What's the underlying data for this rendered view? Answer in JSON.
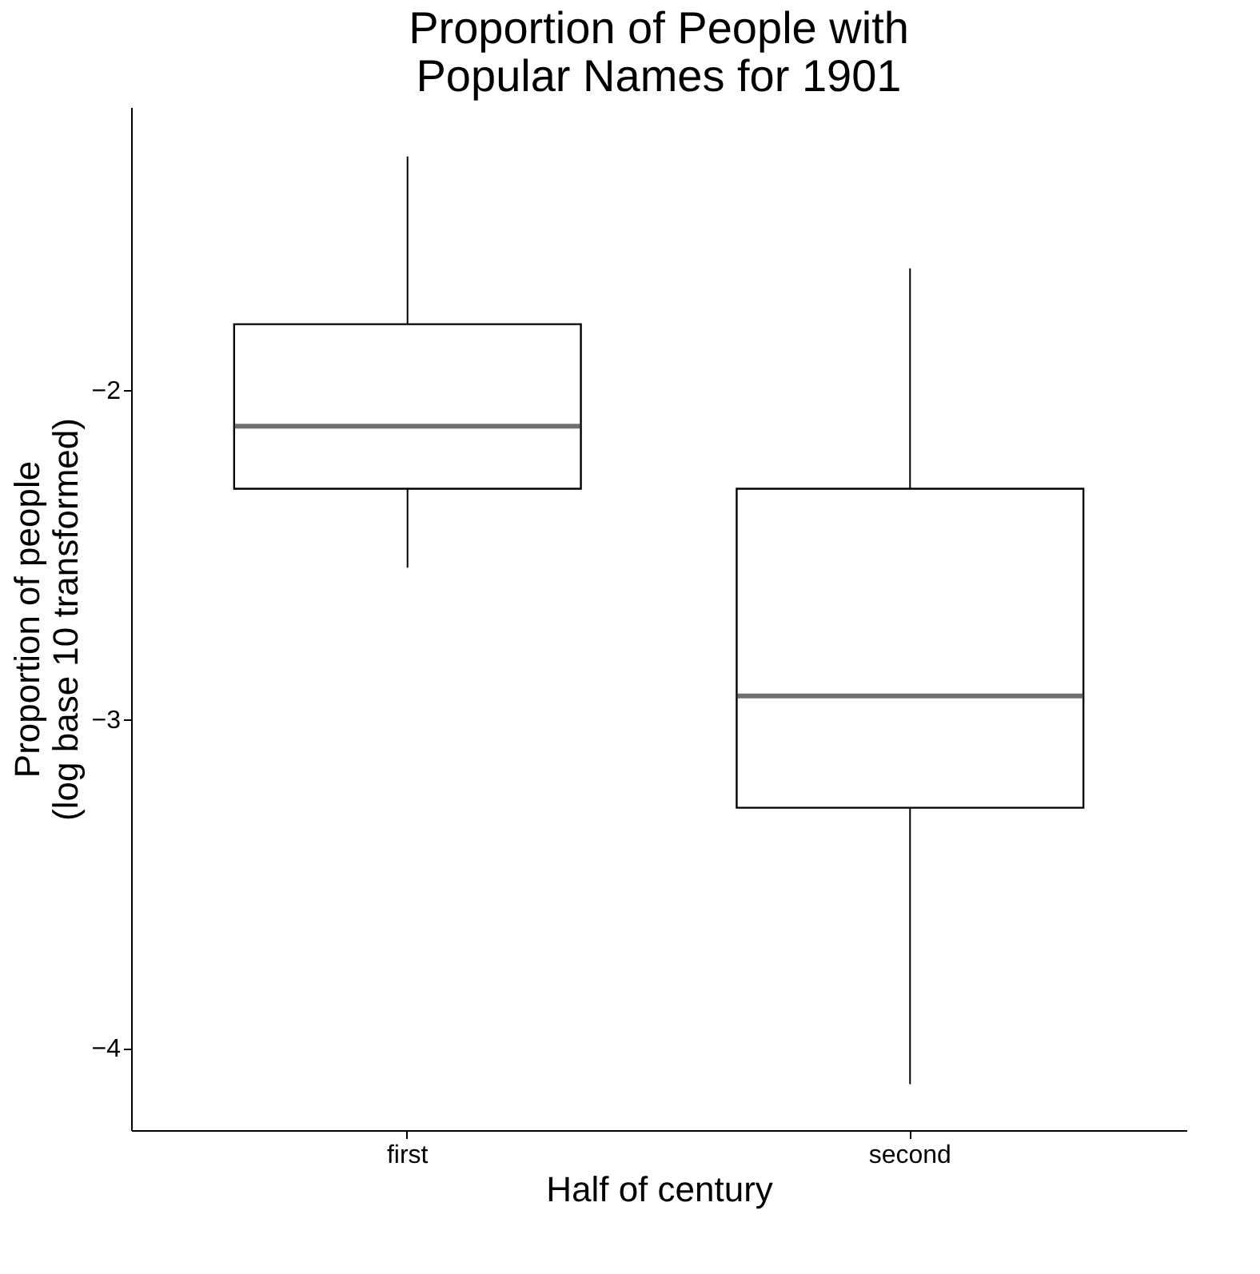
{
  "chart_data": {
    "type": "box",
    "title": "Proportion of People with\nPopular Names for 1901",
    "xlabel": "Half of century",
    "ylabel": "Proportion of people\n(log base 10 transformed)",
    "categories": [
      "first",
      "second"
    ],
    "boxes": [
      {
        "low": -2.54,
        "q1": -2.3,
        "median": -2.11,
        "q3": -1.8,
        "high": -1.29
      },
      {
        "low": -4.11,
        "q1": -3.27,
        "median": -2.93,
        "q3": -2.3,
        "high": -1.63
      }
    ],
    "ylim": [
      -4.25,
      -1.14
    ],
    "yticks": [
      {
        "value": -4,
        "label": "−4"
      },
      {
        "value": -3,
        "label": "−3"
      },
      {
        "value": -2,
        "label": "−2"
      }
    ],
    "grid": false
  }
}
